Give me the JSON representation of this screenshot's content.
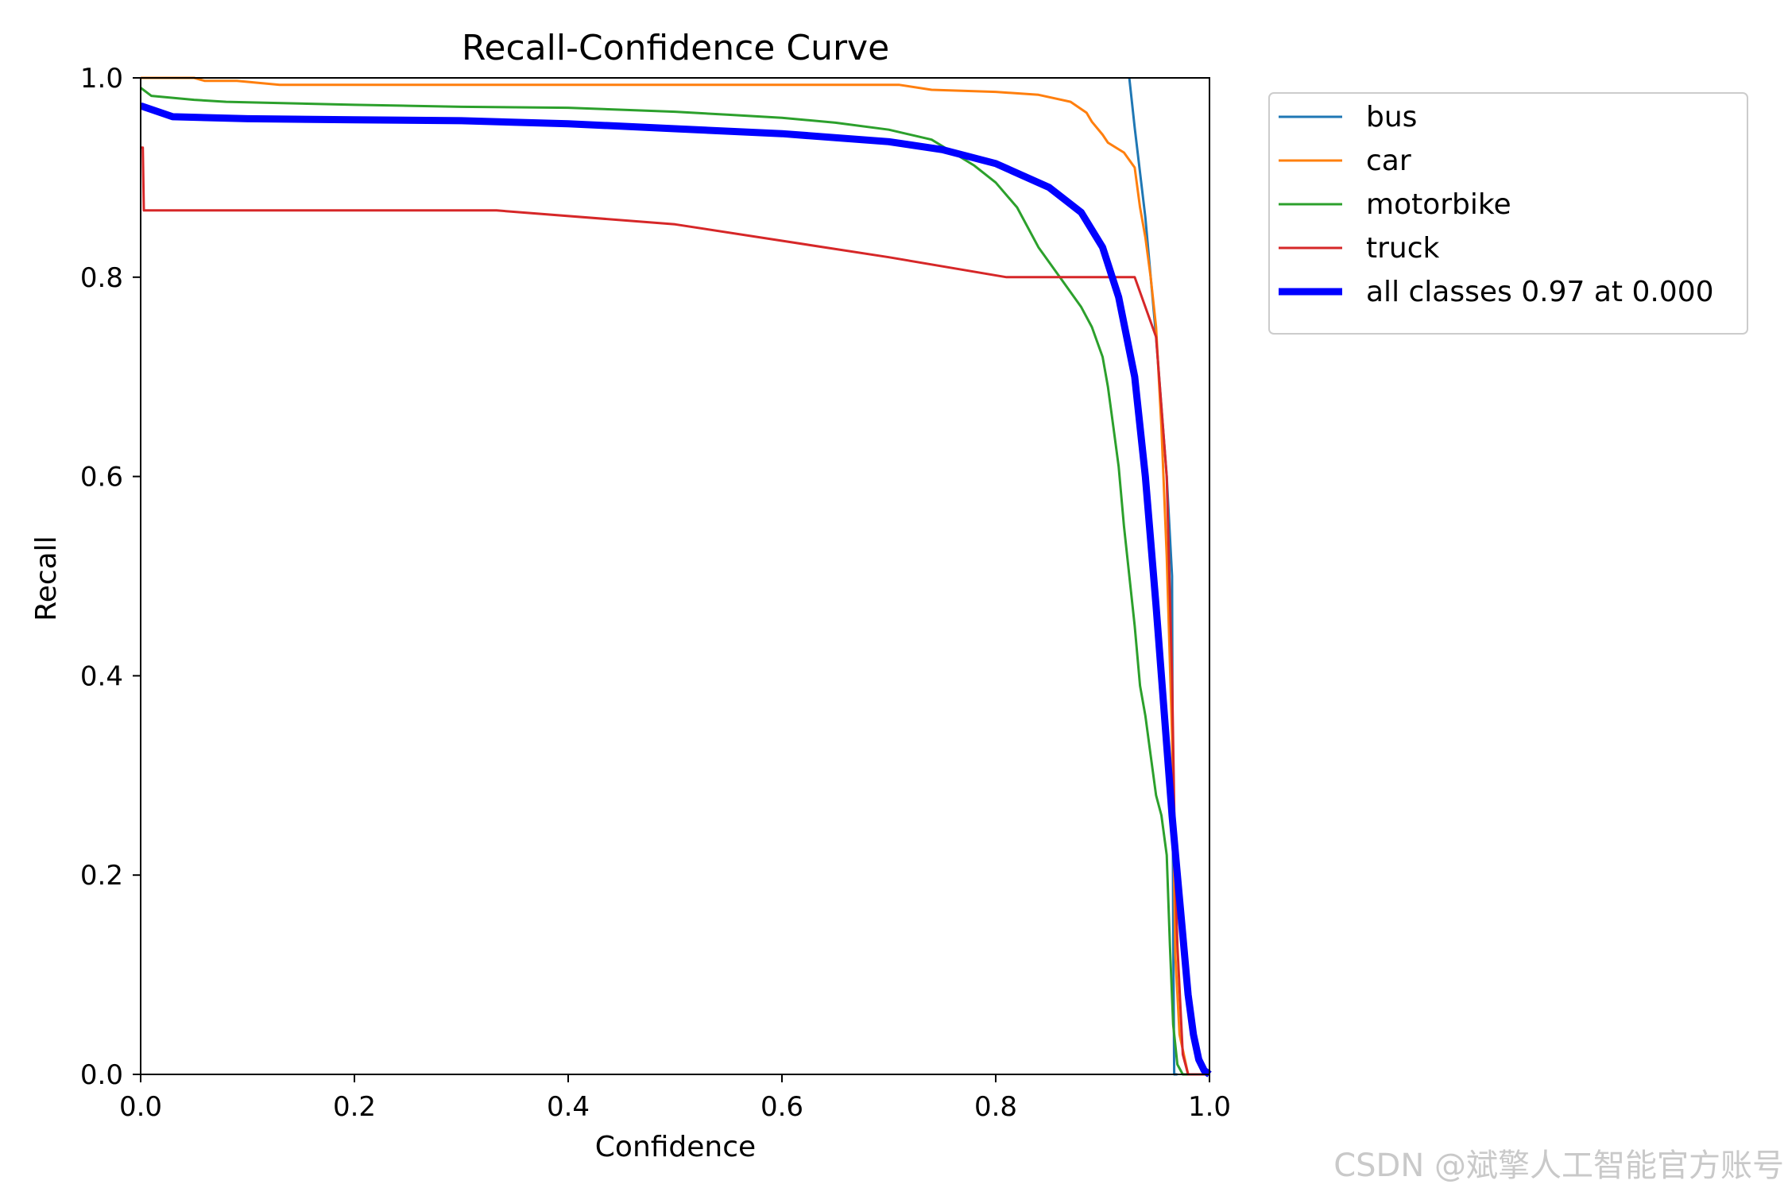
{
  "chart_data": {
    "type": "line",
    "title": "Recall-Confidence Curve",
    "xlabel": "Confidence",
    "ylabel": "Recall",
    "xlim": [
      0,
      1
    ],
    "ylim": [
      0,
      1
    ],
    "xticks": [
      "0.0",
      "0.2",
      "0.4",
      "0.6",
      "0.8",
      "1.0"
    ],
    "yticks": [
      "0.0",
      "0.2",
      "0.4",
      "0.6",
      "0.8",
      "1.0"
    ],
    "grid": false,
    "legend_position": "outside-right-top",
    "series": [
      {
        "name": "bus",
        "color": "#1f77b4",
        "line_width": "thin",
        "x": [
          0.925,
          0.93,
          0.94,
          0.95,
          0.96,
          0.965,
          0.966,
          0.967,
          0.97
        ],
        "y": [
          1.0,
          0.95,
          0.86,
          0.74,
          0.6,
          0.5,
          0.15,
          0.0,
          0.0
        ]
      },
      {
        "name": "car",
        "color": "#ff7f0e",
        "line_width": "thin",
        "x": [
          0.0,
          0.05,
          0.06,
          0.09,
          0.13,
          0.2,
          0.3,
          0.5,
          0.6,
          0.71,
          0.74,
          0.8,
          0.84,
          0.87,
          0.885,
          0.89,
          0.9,
          0.905,
          0.92,
          0.93,
          0.935,
          0.94,
          0.945,
          0.95,
          0.955,
          0.96,
          0.965,
          0.968,
          0.972,
          0.98,
          1.0
        ],
        "y": [
          1.0,
          1.0,
          0.997,
          0.997,
          0.993,
          0.993,
          0.993,
          0.993,
          0.993,
          0.993,
          0.988,
          0.986,
          0.983,
          0.976,
          0.965,
          0.956,
          0.943,
          0.935,
          0.925,
          0.91,
          0.87,
          0.84,
          0.8,
          0.75,
          0.65,
          0.52,
          0.34,
          0.12,
          0.04,
          0.0,
          0.0
        ]
      },
      {
        "name": "motorbike",
        "color": "#2ca02c",
        "line_width": "thin",
        "x": [
          0.0,
          0.01,
          0.03,
          0.05,
          0.08,
          0.12,
          0.2,
          0.25,
          0.3,
          0.4,
          0.45,
          0.5,
          0.55,
          0.6,
          0.65,
          0.7,
          0.74,
          0.76,
          0.78,
          0.8,
          0.82,
          0.84,
          0.86,
          0.87,
          0.88,
          0.89,
          0.9,
          0.905,
          0.91,
          0.915,
          0.92,
          0.93,
          0.935,
          0.94,
          0.945,
          0.95,
          0.955,
          0.96,
          0.963,
          0.966,
          0.97,
          0.975,
          1.0
        ],
        "y": [
          0.99,
          0.982,
          0.98,
          0.978,
          0.976,
          0.975,
          0.973,
          0.972,
          0.971,
          0.97,
          0.968,
          0.966,
          0.963,
          0.96,
          0.955,
          0.948,
          0.938,
          0.925,
          0.912,
          0.895,
          0.87,
          0.83,
          0.8,
          0.785,
          0.77,
          0.75,
          0.72,
          0.69,
          0.65,
          0.61,
          0.55,
          0.45,
          0.39,
          0.36,
          0.32,
          0.28,
          0.26,
          0.22,
          0.13,
          0.05,
          0.01,
          0.0,
          0.0
        ]
      },
      {
        "name": "truck",
        "color": "#d62728",
        "line_width": "thin",
        "x": [
          0.0,
          0.002,
          0.003,
          0.005,
          0.1,
          0.2,
          0.333,
          0.5,
          0.7,
          0.81,
          0.92,
          0.93,
          0.95,
          0.96,
          0.965,
          0.968,
          0.97,
          0.975,
          0.98,
          1.0
        ],
        "y": [
          0.93,
          0.93,
          0.867,
          0.867,
          0.867,
          0.867,
          0.867,
          0.853,
          0.82,
          0.8,
          0.8,
          0.8,
          0.74,
          0.6,
          0.4,
          0.2,
          0.13,
          0.02,
          0.0,
          0.0
        ]
      },
      {
        "name": "all classes 0.97 at 0.000",
        "color": "#0000ff",
        "line_width": "thick",
        "x": [
          0.0,
          0.03,
          0.1,
          0.2,
          0.3,
          0.4,
          0.5,
          0.6,
          0.7,
          0.75,
          0.8,
          0.85,
          0.88,
          0.9,
          0.915,
          0.93,
          0.94,
          0.95,
          0.955,
          0.96,
          0.965,
          0.97,
          0.975,
          0.98,
          0.985,
          0.99,
          0.995,
          1.0
        ],
        "y": [
          0.972,
          0.961,
          0.959,
          0.958,
          0.957,
          0.954,
          0.949,
          0.944,
          0.936,
          0.928,
          0.914,
          0.89,
          0.865,
          0.83,
          0.78,
          0.7,
          0.6,
          0.47,
          0.4,
          0.33,
          0.26,
          0.2,
          0.14,
          0.08,
          0.04,
          0.015,
          0.004,
          0.0
        ]
      }
    ]
  },
  "watermark": "CSDN @斌擎人工智能官方账号"
}
